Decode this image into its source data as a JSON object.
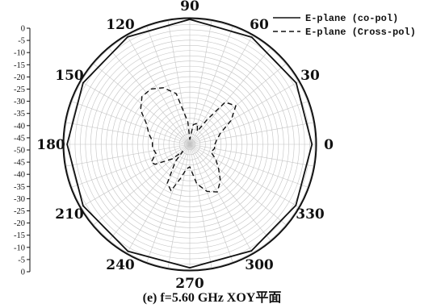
{
  "chart_data": {
    "type": "polar",
    "angle_unit": "deg",
    "angle_ticks": [
      0,
      30,
      60,
      90,
      120,
      150,
      180,
      210,
      240,
      270,
      300,
      330
    ],
    "angle_tick_labels": [
      "0",
      "30",
      "60",
      "90",
      "120",
      "150",
      "180",
      "210",
      "240",
      "270",
      "300",
      "330"
    ],
    "radial_ticks": [
      0,
      -5,
      -10,
      -15,
      -20,
      -25,
      -30,
      -35,
      -40,
      -45,
      -50,
      -45,
      -40,
      -35,
      -30,
      -25,
      -20,
      -15,
      -10,
      -5,
      0
    ],
    "radial_tick_labels": [
      "0",
      "-5",
      "-10",
      "-15",
      "-20",
      "-25",
      "-30",
      "-35",
      "-40",
      "-45",
      "-50",
      "-45",
      "-40",
      "-35",
      "-30",
      "-25",
      "-20",
      "-15",
      "-10",
      "-5",
      "0"
    ],
    "rlim": [
      -50,
      0
    ],
    "grid": true,
    "legend_position": "top-right",
    "series": [
      {
        "name": "E-plane (co-pol)",
        "style": "solid",
        "color": "#111111",
        "points": [
          [
            0,
            -1.2
          ],
          [
            30,
            -0.9
          ],
          [
            60,
            -0.5
          ],
          [
            90,
            0.0
          ],
          [
            120,
            -0.4
          ],
          [
            150,
            -0.8
          ],
          [
            180,
            -1.0
          ],
          [
            210,
            -0.8
          ],
          [
            240,
            -0.6
          ],
          [
            270,
            -0.6
          ],
          [
            300,
            -0.8
          ],
          [
            330,
            -1.1
          ],
          [
            360,
            -1.2
          ]
        ]
      },
      {
        "name": "E-plane (Cross-pol)",
        "style": "dashed",
        "color": "#111111",
        "points": [
          [
            0,
            -40
          ],
          [
            10,
            -39
          ],
          [
            20,
            -37
          ],
          [
            30,
            -31
          ],
          [
            40,
            -26
          ],
          [
            50,
            -28
          ],
          [
            55,
            -38
          ],
          [
            60,
            -44
          ],
          [
            70,
            -41
          ],
          [
            80,
            -42
          ],
          [
            85,
            -47
          ],
          [
            90,
            -48
          ],
          [
            95,
            -41
          ],
          [
            105,
            -29
          ],
          [
            115,
            -25
          ],
          [
            125,
            -23
          ],
          [
            135,
            -23
          ],
          [
            145,
            -26
          ],
          [
            155,
            -31
          ],
          [
            165,
            -33
          ],
          [
            175,
            -35
          ],
          [
            185,
            -35
          ],
          [
            195,
            -36
          ],
          [
            205,
            -33
          ],
          [
            210,
            -34
          ],
          [
            220,
            -41
          ],
          [
            225,
            -46
          ],
          [
            230,
            -41
          ],
          [
            240,
            -32
          ],
          [
            248,
            -30
          ],
          [
            255,
            -36
          ],
          [
            262,
            -40
          ],
          [
            270,
            -41
          ],
          [
            280,
            -34
          ],
          [
            290,
            -30
          ],
          [
            300,
            -28
          ],
          [
            310,
            -31
          ],
          [
            320,
            -35
          ],
          [
            330,
            -38
          ],
          [
            340,
            -41
          ],
          [
            350,
            -40
          ],
          [
            360,
            -40
          ]
        ]
      }
    ]
  },
  "caption": "(e) f=5.60 GHz XOY平面"
}
